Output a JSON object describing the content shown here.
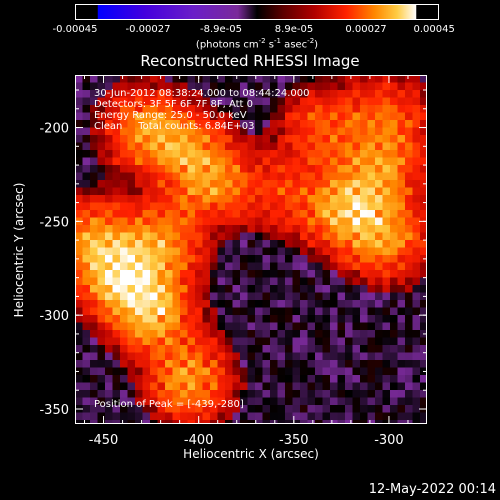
{
  "chart_data": {
    "type": "heatmap",
    "title": "Reconstructed RHESSI Image",
    "xlabel": "Heliocentric X (arcsec)",
    "ylabel": "Heliocentric Y (arcsec)",
    "xlim": [
      -465,
      -280
    ],
    "ylim": [
      -358,
      -172
    ],
    "xticks": [
      -450,
      -400,
      -350,
      -300
    ],
    "yticks": [
      -350,
      -300,
      -250,
      -200
    ],
    "colorbar": {
      "ticks": [
        "-0.00045",
        "-0.00027",
        "-8.9e-05",
        "8.9e-05",
        "0.00027",
        "0.00045"
      ],
      "unit_parts": [
        "(photons cm",
        "-2",
        " s",
        "-1",
        " asec",
        "-2",
        ")"
      ],
      "range": [
        -0.00045,
        0.00045
      ],
      "colormap": [
        "#0000ff",
        "#4400dd",
        "#6a1ec8",
        "#7a2a9a",
        "#000000",
        "#5a0000",
        "#b00000",
        "#ff2200",
        "#ff8800",
        "#ffcc44",
        "#ffffff"
      ]
    },
    "annotations": [
      "30-Jun-2012 08:38:24.000 to 08:44:24.000",
      "Detectors: 3F 5F 6F 7F 8F, Att 0",
      "Energy Range: 25.0 - 50.0 keV",
      "Clean     Total counts: 6.84E+03"
    ],
    "peak_label": "Position of Peak = [-439,-280]",
    "peak": [
      -439,
      -280
    ],
    "bright_regions": [
      {
        "x": -439,
        "y": -280,
        "intensity": 1.0
      },
      {
        "x": -423,
        "y": -300,
        "intensity": 0.75
      },
      {
        "x": -405,
        "y": -335,
        "intensity": 0.7
      },
      {
        "x": -455,
        "y": -260,
        "intensity": 0.65
      },
      {
        "x": -418,
        "y": -260,
        "intensity": 0.6
      },
      {
        "x": -392,
        "y": -228,
        "intensity": 0.65
      },
      {
        "x": -410,
        "y": -210,
        "intensity": 0.55
      },
      {
        "x": -430,
        "y": -200,
        "intensity": 0.55
      },
      {
        "x": -322,
        "y": -245,
        "intensity": 0.8
      },
      {
        "x": -305,
        "y": -225,
        "intensity": 0.6
      },
      {
        "x": -300,
        "y": -260,
        "intensity": 0.6
      },
      {
        "x": -335,
        "y": -200,
        "intensity": 0.45
      },
      {
        "x": -300,
        "y": -195,
        "intensity": 0.5
      },
      {
        "x": -355,
        "y": -235,
        "intensity": 0.35
      }
    ]
  },
  "footer": {
    "timestamp": "12-May-2022 00:14"
  }
}
